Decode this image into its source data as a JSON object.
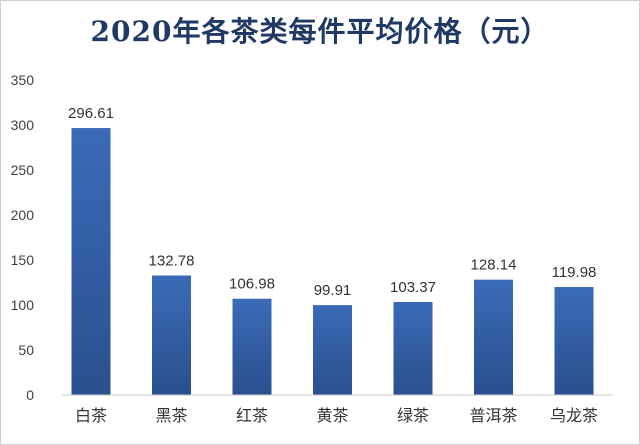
{
  "chart_data": {
    "type": "bar",
    "title": "2020年各茶类每件平均价格（元）",
    "xlabel": "",
    "ylabel": "",
    "categories": [
      "白茶",
      "黑茶",
      "红茶",
      "黄茶",
      "绿茶",
      "普洱茶",
      "乌龙茶"
    ],
    "values": [
      296.61,
      132.78,
      106.98,
      99.91,
      103.37,
      128.14,
      119.98
    ],
    "value_labels": [
      "296.61",
      "132.78",
      "106.98",
      "99.91",
      "103.37",
      "128.14",
      "119.98"
    ],
    "ylim": [
      0,
      350
    ],
    "yticks": [
      0,
      50,
      100,
      150,
      200,
      250,
      300,
      350
    ],
    "grid": false,
    "legend": "none",
    "colors": {
      "bar_top": "#3a6bb8",
      "bar_bottom": "#2a4f8e",
      "title": "#1f3864"
    }
  }
}
